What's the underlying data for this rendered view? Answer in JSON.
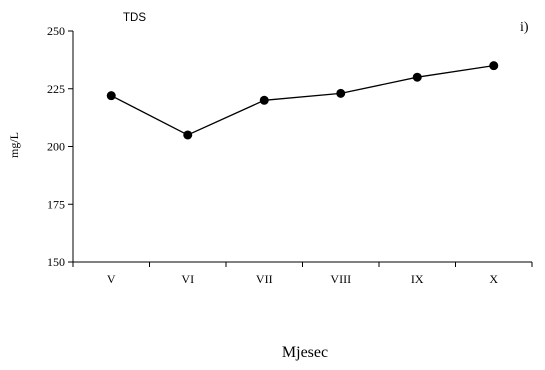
{
  "chart_data": {
    "type": "line",
    "title": "TDS",
    "panel_label": "i)",
    "xlabel": "Mjesec",
    "ylabel": "mg/L",
    "categories": [
      "V",
      "VI",
      "VII",
      "VIII",
      "IX",
      "X"
    ],
    "series": [
      {
        "values": [
          222,
          205,
          220,
          223,
          230,
          235
        ]
      }
    ],
    "ylim": [
      150,
      250
    ],
    "yticks": [
      150,
      175,
      200,
      225,
      250
    ],
    "grid": false,
    "legend": "none",
    "line_color": "#000000",
    "marker_color": "#000000"
  }
}
